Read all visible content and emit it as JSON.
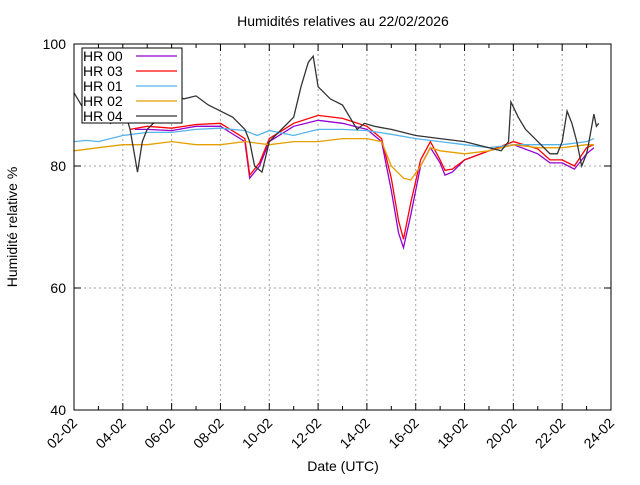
{
  "chart_data": {
    "type": "line",
    "title": "Humidités relatives  au 22/02/2026",
    "xlabel": "Date (UTC)",
    "ylabel": "Humidité relative %",
    "ylim": [
      40,
      100
    ],
    "yticks": [
      40,
      60,
      80,
      100
    ],
    "xlim_days": [
      0,
      22
    ],
    "xtick_labels": [
      "02-02",
      "04-02",
      "06-02",
      "08-02",
      "10-02",
      "12-02",
      "14-02",
      "16-02",
      "18-02",
      "20-02",
      "22-02",
      "24-02"
    ],
    "x_unit": "days since 02-02",
    "grid": true,
    "legend_position": "top-left",
    "series": [
      {
        "name": "HR 00",
        "color": "#9400d3",
        "x": [
          2.5,
          3,
          4,
          5,
          6,
          6.6,
          7,
          7.2,
          7.6,
          8,
          9,
          10,
          11,
          12,
          12.6,
          13,
          13.3,
          13.5,
          13.8,
          14.2,
          14.6,
          15,
          15.2,
          15.5,
          16,
          17,
          18,
          19,
          19.5,
          20,
          20.5,
          21,
          21.3
        ],
        "y": [
          86,
          86,
          85.8,
          86.5,
          86.5,
          85,
          84,
          78,
          80,
          84,
          86.5,
          87.5,
          87,
          86,
          84,
          76,
          69,
          66.6,
          72,
          80,
          83,
          80.5,
          78.5,
          79,
          81,
          82.5,
          83.5,
          82,
          80.5,
          80.5,
          79.5,
          82,
          83
        ]
      },
      {
        "name": "HR 03",
        "color": "#ff0000",
        "x": [
          2.3,
          3,
          4,
          5,
          6,
          6.6,
          7,
          7.2,
          7.6,
          8,
          9,
          10,
          11,
          12,
          12.6,
          13,
          13.3,
          13.5,
          13.8,
          14.2,
          14.6,
          15,
          15.2,
          15.5,
          16,
          17,
          18,
          19,
          19.5,
          20,
          20.5,
          21,
          21.3
        ],
        "y": [
          86,
          86.5,
          86.2,
          86.8,
          87,
          85.5,
          84.5,
          78.5,
          80.5,
          84.5,
          87,
          88.3,
          87.8,
          86.5,
          84.5,
          78,
          71,
          68,
          74,
          81,
          84,
          81,
          79.3,
          79.5,
          81,
          82.5,
          84,
          82.8,
          81,
          81,
          80,
          83,
          83.5
        ]
      },
      {
        "name": "HR 01",
        "color": "#56b4e9",
        "x": [
          0,
          0.5,
          1,
          2,
          3,
          4,
          5,
          6,
          7,
          7.5,
          8,
          9,
          10,
          11,
          12,
          13,
          14,
          15,
          16,
          17,
          18,
          19,
          20,
          21,
          21.3
        ],
        "y": [
          84,
          84.2,
          84,
          85,
          85.5,
          85.5,
          86,
          86.2,
          85.8,
          85,
          85.8,
          85,
          86,
          86,
          85.8,
          85.2,
          84.5,
          84,
          83.5,
          83,
          83.5,
          83.5,
          83.5,
          84,
          84.5
        ]
      },
      {
        "name": "HR 02",
        "color": "#e69f00",
        "x": [
          0,
          1,
          2,
          3,
          4,
          5,
          6,
          7,
          8,
          9,
          10,
          11,
          12,
          12.6,
          13,
          13.5,
          13.8,
          14.2,
          14.6,
          15,
          16,
          17,
          18,
          19,
          20,
          21,
          21.3
        ],
        "y": [
          82.5,
          83,
          83.5,
          83.5,
          84,
          83.5,
          83.5,
          84,
          83.5,
          84,
          84,
          84.5,
          84.5,
          84,
          80,
          78,
          77.7,
          80,
          83,
          82.5,
          82,
          82.5,
          83.5,
          83,
          83,
          83.5,
          83.5
        ]
      },
      {
        "name": "HR 04",
        "color": "#333333",
        "x": [
          0,
          0.3,
          0.6,
          1,
          1.5,
          2,
          2.3,
          2.6,
          2.8,
          3,
          3.5,
          4,
          4.5,
          5,
          5.5,
          6,
          6.5,
          7,
          7.2,
          7.4,
          7.7,
          8,
          8.5,
          9,
          9.3,
          9.6,
          9.8,
          10,
          10.5,
          11,
          11.3,
          11.6,
          11.9,
          12.3,
          13,
          14,
          15,
          16,
          17,
          17.5,
          17.8,
          17.9,
          18.2,
          18.5,
          19,
          19.5,
          19.8,
          20,
          20.2,
          20.4,
          20.6,
          20.8,
          21,
          21.1,
          21.3,
          21.4,
          21.5
        ],
        "y": [
          92,
          90,
          88,
          89,
          87,
          90,
          86,
          79,
          84,
          86,
          88,
          92,
          91,
          91.5,
          90,
          89,
          88,
          86,
          84,
          80,
          79,
          84,
          86,
          88,
          93,
          97,
          98,
          93,
          91,
          90,
          88,
          86,
          87,
          86.5,
          86,
          85,
          84.5,
          84,
          83,
          82.5,
          84,
          90.5,
          88,
          86,
          84,
          82,
          82,
          84,
          89,
          87,
          84,
          80,
          82,
          84,
          88.5,
          86.5,
          87
        ]
      }
    ]
  }
}
